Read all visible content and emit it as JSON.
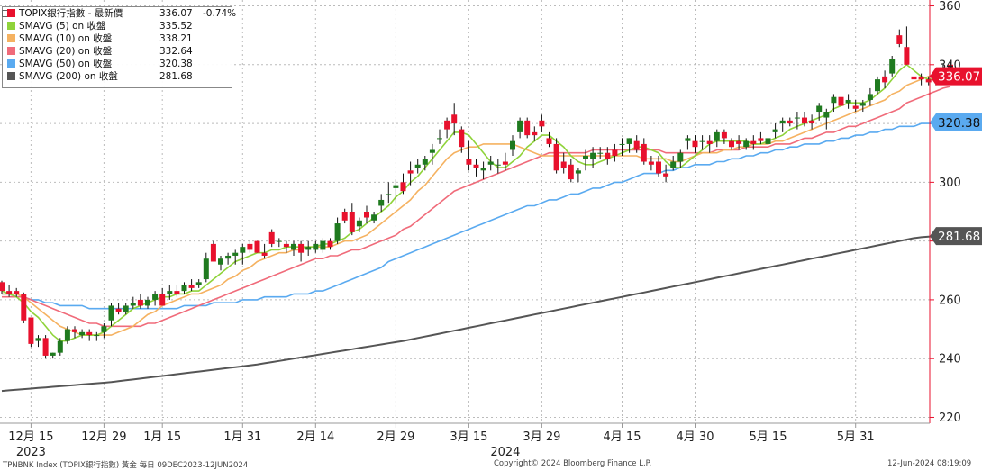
{
  "legend": {
    "header": {
      "name": "TOPIX銀行指數 - 最新價",
      "value": "336.07",
      "change": "-0.74%",
      "color": "#e8112d"
    },
    "items": [
      {
        "name": "SMAVG (5)  on 收盤",
        "value": "335.52",
        "color": "#8fd33a"
      },
      {
        "name": "SMAVG (10)  on 收盤",
        "value": "338.21",
        "color": "#f5b261"
      },
      {
        "name": "SMAVG (20)  on 收盤",
        "value": "332.64",
        "color": "#f06b7a"
      },
      {
        "name": "SMAVG (50)  on 收盤",
        "value": "320.38",
        "color": "#5aaaf0"
      },
      {
        "name": "SMAVG (200)  on 收盤",
        "value": "281.68",
        "color": "#555555"
      }
    ]
  },
  "footer": {
    "left": "TPNBNK Index (TOPIX銀行指數) 黃金  每日 09DEC2023-12JUN2024",
    "center": "Copyright© 2024 Bloomberg Finance L.P.",
    "right": "12-Jun-2024 08:19:09"
  },
  "chart_data": {
    "type": "candlestick",
    "y_ticks": [
      "360",
      "340",
      "320",
      "300",
      "280",
      "260",
      "240",
      "220"
    ],
    "ylim": [
      218,
      362
    ],
    "x_ticks": [
      "12月 15",
      "12月 29",
      "1月 15",
      "1月 31",
      "2月 14",
      "2月 29",
      "3月 15",
      "3月 29",
      "4月 15",
      "4月 30",
      "5月 15",
      "5月 31"
    ],
    "x_tick_index": [
      4,
      14,
      22,
      33,
      43,
      54,
      64,
      74,
      85,
      95,
      105,
      117
    ],
    "year_labels": [
      {
        "label": "2023",
        "index": 4
      },
      {
        "label": "2024",
        "index": 69
      }
    ],
    "price_tags": [
      {
        "value": 336.07,
        "label": "336.07",
        "color": "#e8112d",
        "text_color": "#ffffff"
      },
      {
        "value": 320.38,
        "label": "320.38",
        "color": "#5aaaf0",
        "text_color": "#111111"
      },
      {
        "value": 281.68,
        "label": "281.68",
        "color": "#555555",
        "text_color": "#ffffff"
      }
    ],
    "candles": [
      [
        266,
        266.5,
        262,
        263
      ],
      [
        263,
        265,
        261,
        262
      ],
      [
        263,
        264,
        261,
        262
      ],
      [
        262,
        262.5,
        252,
        253
      ],
      [
        254,
        254,
        244,
        245
      ],
      [
        246,
        248,
        244,
        247
      ],
      [
        247,
        248,
        240,
        241
      ],
      [
        241,
        242,
        240,
        242
      ],
      [
        242,
        247,
        241,
        246
      ],
      [
        246,
        251,
        245,
        250
      ],
      [
        250,
        251,
        247,
        249
      ],
      [
        248,
        250,
        247,
        249
      ],
      [
        249,
        250,
        246,
        248
      ],
      [
        248,
        249,
        246,
        248
      ],
      [
        249,
        252,
        247,
        251
      ],
      [
        253,
        259,
        251,
        258
      ],
      [
        257,
        259,
        255,
        256
      ],
      [
        256,
        259,
        255,
        258
      ],
      [
        258,
        261,
        257,
        259
      ],
      [
        260,
        262,
        257,
        258
      ],
      [
        258,
        261,
        257,
        260
      ],
      [
        260,
        263,
        258,
        262
      ],
      [
        262,
        264,
        258,
        258
      ],
      [
        262,
        265,
        260,
        263
      ],
      [
        263,
        265,
        261,
        262
      ],
      [
        263,
        266,
        262,
        265
      ],
      [
        265,
        267,
        263,
        264
      ],
      [
        265,
        267,
        264,
        266
      ],
      [
        267,
        276,
        266,
        274
      ],
      [
        279,
        280,
        273,
        273
      ],
      [
        272,
        275,
        270,
        274
      ],
      [
        274,
        276,
        272,
        275
      ],
      [
        275,
        277,
        272,
        276
      ],
      [
        276,
        279,
        272,
        278
      ],
      [
        279,
        280,
        276,
        277
      ],
      [
        280,
        280,
        276,
        276
      ],
      [
        276,
        279,
        274,
        275
      ],
      [
        283,
        284,
        278,
        279
      ],
      [
        280,
        281,
        278,
        280
      ],
      [
        279,
        280,
        276,
        278
      ],
      [
        277,
        280,
        275,
        279
      ],
      [
        279,
        280,
        273,
        276
      ],
      [
        277,
        280,
        275,
        278
      ],
      [
        277,
        280,
        276,
        279
      ],
      [
        277,
        281,
        276,
        280
      ],
      [
        280,
        281,
        277,
        278
      ],
      [
        280,
        288,
        279,
        286
      ],
      [
        290,
        291,
        286,
        287
      ],
      [
        290,
        293,
        282,
        283
      ],
      [
        285,
        288,
        283,
        287
      ],
      [
        290,
        292,
        286,
        288
      ],
      [
        287,
        290,
        286,
        289
      ],
      [
        292,
        296,
        290,
        294
      ],
      [
        296,
        300,
        293,
        296
      ],
      [
        298,
        301,
        293,
        299
      ],
      [
        300,
        303,
        296,
        297
      ],
      [
        304,
        307,
        299,
        303
      ],
      [
        305,
        308,
        303,
        306
      ],
      [
        306,
        309,
        304,
        308
      ],
      [
        310,
        313,
        306,
        311
      ],
      [
        315,
        318,
        313,
        315
      ],
      [
        321,
        322,
        315,
        318
      ],
      [
        323,
        327,
        316,
        320
      ],
      [
        318,
        319,
        310,
        312
      ],
      [
        308,
        314,
        304,
        306
      ],
      [
        306,
        308,
        302,
        305
      ],
      [
        304,
        307,
        301,
        305
      ],
      [
        306,
        309,
        304,
        307
      ],
      [
        306,
        308,
        303,
        306
      ],
      [
        307,
        310,
        304,
        306
      ],
      [
        311,
        316,
        309,
        314
      ],
      [
        317,
        322,
        315,
        321
      ],
      [
        321,
        322,
        315,
        316
      ],
      [
        317,
        319,
        314,
        316
      ],
      [
        321,
        323,
        317,
        319
      ],
      [
        315,
        317,
        312,
        313
      ],
      [
        313,
        315,
        303,
        304
      ],
      [
        307,
        310,
        303,
        305
      ],
      [
        306,
        308,
        300,
        301
      ],
      [
        303,
        305,
        300,
        304
      ],
      [
        308,
        311,
        304,
        309
      ],
      [
        308,
        312,
        305,
        310
      ],
      [
        310,
        312,
        308,
        310
      ],
      [
        310,
        312,
        306,
        308
      ],
      [
        311,
        313,
        307,
        309
      ],
      [
        313,
        315,
        309,
        313
      ],
      [
        313,
        315,
        310,
        315
      ],
      [
        314,
        316,
        310,
        311
      ],
      [
        313,
        315,
        306,
        307
      ],
      [
        307,
        309,
        304,
        306
      ],
      [
        307,
        309,
        302,
        303
      ],
      [
        303,
        306,
        300,
        302
      ],
      [
        305,
        309,
        304,
        307
      ],
      [
        307,
        311,
        305,
        310
      ],
      [
        314,
        316,
        311,
        315
      ],
      [
        314,
        316,
        310,
        312
      ],
      [
        314,
        316,
        311,
        314
      ],
      [
        314,
        316,
        310,
        313
      ],
      [
        314,
        318,
        312,
        317
      ],
      [
        317,
        318,
        313,
        315
      ],
      [
        314,
        315,
        311,
        312
      ],
      [
        314,
        316,
        311,
        313
      ],
      [
        312,
        315,
        311,
        314
      ],
      [
        314,
        316,
        311,
        313
      ],
      [
        315,
        317,
        313,
        314
      ],
      [
        313,
        316,
        312,
        315
      ],
      [
        317,
        320,
        315,
        318
      ],
      [
        320,
        322,
        317,
        321
      ],
      [
        321,
        322,
        319,
        320
      ],
      [
        322,
        324,
        318,
        322
      ],
      [
        322,
        324,
        319,
        320
      ],
      [
        321,
        323,
        318,
        320
      ],
      [
        324,
        327,
        321,
        326
      ],
      [
        322,
        325,
        318,
        324
      ],
      [
        327,
        330,
        324,
        329
      ],
      [
        329,
        331,
        326,
        326
      ],
      [
        327,
        330,
        325,
        328
      ],
      [
        326,
        328,
        324,
        325
      ],
      [
        326,
        328,
        324,
        327
      ],
      [
        328,
        332,
        326,
        330
      ],
      [
        331,
        336,
        330,
        335
      ],
      [
        336,
        338,
        332,
        334
      ],
      [
        337,
        343,
        336,
        342
      ],
      [
        350,
        352,
        346,
        347
      ],
      [
        346,
        353,
        340,
        340
      ],
      [
        336,
        338,
        333,
        335
      ],
      [
        336,
        337,
        333,
        335
      ],
      [
        335,
        336,
        333,
        334
      ],
      [
        337,
        338,
        333,
        336
      ],
      [
        337,
        340,
        335,
        339
      ],
      [
        340,
        341,
        334,
        336
      ]
    ],
    "smavg5": [
      263,
      262,
      261,
      259,
      256,
      254,
      251,
      248,
      246,
      246,
      247,
      248,
      248,
      248,
      249,
      251,
      253,
      255,
      257,
      258,
      259,
      260,
      261,
      261,
      262,
      262,
      263,
      263,
      265,
      267,
      269,
      271,
      273,
      274,
      275,
      276,
      276,
      277,
      277,
      278,
      278,
      278,
      278,
      278,
      279,
      279,
      280,
      281,
      283,
      284,
      286,
      288,
      290,
      292,
      295,
      297,
      300,
      302,
      305,
      308,
      311,
      314,
      317,
      317,
      316,
      313,
      310,
      307,
      305,
      305,
      307,
      309,
      312,
      314,
      316,
      316,
      314,
      312,
      309,
      307,
      306,
      306,
      307,
      308,
      309,
      310,
      311,
      312,
      312,
      311,
      310,
      307,
      305,
      305,
      307,
      309,
      311,
      313,
      314,
      314,
      314,
      314,
      314,
      313,
      313,
      314,
      315,
      316,
      318,
      319,
      320,
      321,
      322,
      323,
      325,
      326,
      327,
      327,
      327,
      328,
      330,
      332,
      335,
      338,
      340,
      338,
      336,
      335,
      335,
      336,
      337
    ],
    "smavg10": [
      262,
      262,
      262,
      261,
      259,
      257,
      255,
      253,
      251,
      250,
      249,
      248,
      248,
      248,
      248,
      248,
      249,
      250,
      251,
      253,
      255,
      256,
      258,
      259,
      260,
      261,
      262,
      262,
      263,
      264,
      265,
      267,
      268,
      270,
      271,
      273,
      274,
      275,
      276,
      276,
      277,
      277,
      278,
      278,
      278,
      278,
      279,
      280,
      280,
      281,
      282,
      284,
      286,
      288,
      290,
      292,
      294,
      297,
      299,
      302,
      305,
      308,
      310,
      311,
      312,
      312,
      313,
      313,
      313,
      313,
      313,
      312,
      311,
      310,
      309,
      309,
      309,
      309,
      309,
      309,
      309,
      309,
      309,
      309,
      309,
      309,
      309,
      309,
      308,
      308,
      308,
      308,
      307,
      307,
      308,
      309,
      310,
      310,
      310,
      311,
      311,
      312,
      312,
      313,
      313,
      313,
      314,
      314,
      315,
      316,
      317,
      318,
      319,
      320,
      321,
      322,
      323,
      324,
      325,
      326,
      327,
      328,
      330,
      331,
      333,
      334,
      335,
      336,
      337,
      338,
      338
    ],
    "smavg20": [
      261,
      261,
      261,
      261,
      260,
      259,
      258,
      257,
      256,
      255,
      254,
      253,
      252,
      252,
      251,
      251,
      251,
      251,
      251,
      251,
      252,
      252,
      253,
      254,
      255,
      256,
      257,
      258,
      259,
      260,
      261,
      262,
      263,
      264,
      265,
      266,
      267,
      268,
      269,
      270,
      271,
      272,
      273,
      274,
      274,
      275,
      275,
      276,
      277,
      277,
      278,
      279,
      280,
      281,
      282,
      284,
      285,
      287,
      289,
      291,
      293,
      295,
      297,
      298,
      299,
      300,
      301,
      302,
      303,
      304,
      305,
      306,
      307,
      308,
      309,
      310,
      310,
      310,
      310,
      310,
      310,
      311,
      311,
      311,
      311,
      311,
      311,
      311,
      311,
      311,
      311,
      310,
      310,
      310,
      310,
      310,
      310,
      310,
      311,
      311,
      311,
      311,
      312,
      312,
      312,
      312,
      313,
      313,
      313,
      314,
      315,
      315,
      316,
      317,
      317,
      318,
      319,
      319,
      320,
      321,
      322,
      323,
      324,
      325,
      327,
      328,
      329,
      330,
      331,
      332,
      332.6
    ],
    "smavg50": [
      262,
      262,
      261,
      261,
      260,
      260,
      259,
      259,
      258,
      258,
      258,
      258,
      257,
      257,
      257,
      257,
      257,
      257,
      257,
      257,
      257,
      257,
      257,
      257,
      257,
      258,
      258,
      258,
      258,
      259,
      259,
      259,
      259,
      260,
      260,
      260,
      261,
      261,
      261,
      261,
      262,
      262,
      262,
      263,
      263,
      264,
      265,
      266,
      267,
      268,
      269,
      270,
      271,
      273,
      274,
      275,
      276,
      277,
      278,
      279,
      280,
      281,
      282,
      283,
      284,
      285,
      286,
      287,
      288,
      289,
      290,
      291,
      292,
      292,
      293,
      294,
      294,
      295,
      296,
      296,
      297,
      298,
      298,
      299,
      300,
      300,
      301,
      302,
      303,
      303,
      303,
      304,
      304,
      305,
      305,
      306,
      306,
      306,
      307,
      307,
      308,
      308,
      309,
      309,
      310,
      310,
      311,
      311,
      312,
      312,
      313,
      313,
      313,
      314,
      314,
      315,
      315,
      316,
      316,
      317,
      317,
      318,
      318,
      319,
      319,
      319,
      320,
      320,
      320,
      320,
      320.4
    ],
    "smavg200": [
      229,
      229.2,
      229.4,
      229.6,
      229.8,
      230,
      230.2,
      230.4,
      230.6,
      230.8,
      231,
      231.2,
      231.4,
      231.6,
      231.8,
      232,
      232.3,
      232.6,
      232.9,
      233.2,
      233.5,
      233.8,
      234.1,
      234.4,
      234.7,
      235,
      235.3,
      235.6,
      235.9,
      236.2,
      236.5,
      236.8,
      237.1,
      237.4,
      237.7,
      238,
      238.4,
      238.8,
      239.2,
      239.6,
      240,
      240.4,
      240.8,
      241.2,
      241.6,
      242,
      242.4,
      242.8,
      243.2,
      243.6,
      244,
      244.4,
      244.8,
      245.2,
      245.6,
      246,
      246.5,
      247,
      247.5,
      248,
      248.5,
      249,
      249.5,
      250,
      250.5,
      251,
      251.5,
      252,
      252.5,
      253,
      253.5,
      254,
      254.5,
      255,
      255.5,
      256,
      256.5,
      257,
      257.5,
      258,
      258.5,
      259,
      259.5,
      260,
      260.5,
      261,
      261.5,
      262,
      262.5,
      263,
      263.5,
      264,
      264.5,
      265,
      265.5,
      266,
      266.5,
      267,
      267.5,
      268,
      268.5,
      269,
      269.5,
      270,
      270.5,
      271,
      271.5,
      272,
      272.5,
      273,
      273.5,
      274,
      274.5,
      275,
      275.5,
      276,
      276.5,
      277,
      277.5,
      278,
      278.5,
      279,
      279.5,
      280,
      280.5,
      281,
      281.3,
      281.5,
      281.6,
      281.68,
      281.68
    ]
  }
}
